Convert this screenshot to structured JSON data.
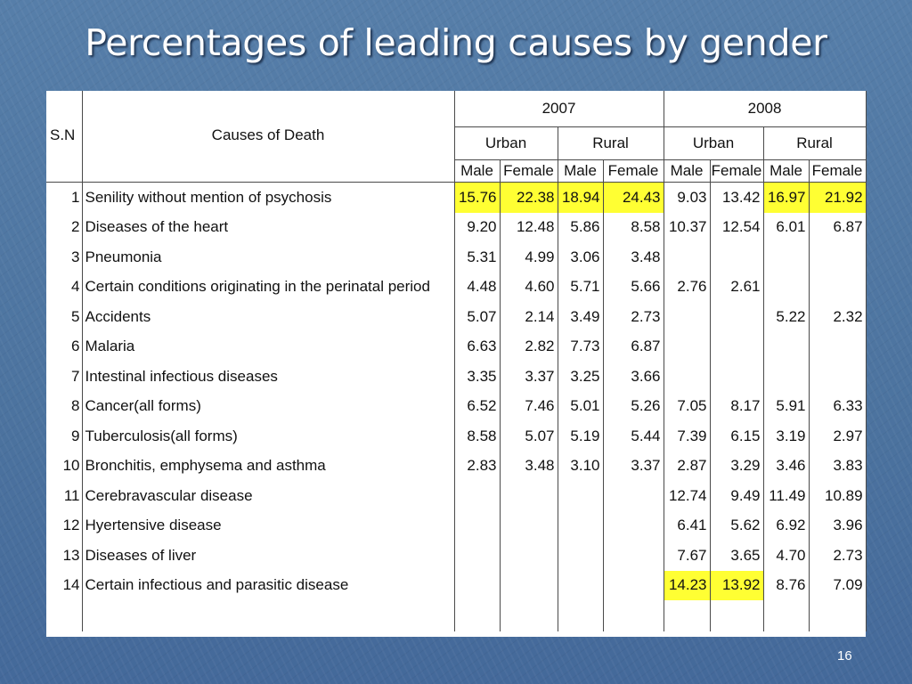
{
  "slide": {
    "title": "Percentages of leading causes by gender",
    "page_number": "16"
  },
  "colors": {
    "background": "#4f77a3",
    "highlight": "#ffff33",
    "title_text": "#ffffff"
  },
  "table": {
    "headers": {
      "sn": "S.N",
      "cause": "Causes of Death",
      "years": [
        "2007",
        "2008"
      ],
      "areas": [
        "Urban",
        "Rural",
        "Urban",
        "Rural"
      ],
      "genders": [
        "Male",
        "Female",
        "Male",
        "Female",
        "Male",
        "Female",
        "Male",
        "Female"
      ]
    },
    "rows": [
      {
        "sn": "1",
        "cause": "Senility without mention of psychosis",
        "values": [
          "15.76",
          "22.38",
          "18.94",
          "24.43",
          "9.03",
          "13.42",
          "16.97",
          "21.92"
        ],
        "highlight": [
          true,
          true,
          true,
          true,
          false,
          false,
          true,
          true
        ]
      },
      {
        "sn": "2",
        "cause": "Diseases of the heart",
        "values": [
          "9.20",
          "12.48",
          "5.86",
          "8.58",
          "10.37",
          "12.54",
          "6.01",
          "6.87"
        ],
        "highlight": [
          false,
          false,
          false,
          false,
          false,
          false,
          false,
          false
        ]
      },
      {
        "sn": "3",
        "cause": "Pneumonia",
        "values": [
          "5.31",
          "4.99",
          "3.06",
          "3.48",
          "",
          "",
          "",
          ""
        ],
        "highlight": [
          false,
          false,
          false,
          false,
          false,
          false,
          false,
          false
        ]
      },
      {
        "sn": "4",
        "cause": "Certain conditions originating in the perinatal period",
        "values": [
          "4.48",
          "4.60",
          "5.71",
          "5.66",
          "2.76",
          "2.61",
          "",
          ""
        ],
        "highlight": [
          false,
          false,
          false,
          false,
          false,
          false,
          false,
          false
        ]
      },
      {
        "sn": "5",
        "cause": "Accidents",
        "values": [
          "5.07",
          "2.14",
          "3.49",
          "2.73",
          "",
          "",
          "5.22",
          "2.32"
        ],
        "highlight": [
          false,
          false,
          false,
          false,
          false,
          false,
          false,
          false
        ]
      },
      {
        "sn": "6",
        "cause": "Malaria",
        "values": [
          "6.63",
          "2.82",
          "7.73",
          "6.87",
          "",
          "",
          "",
          ""
        ],
        "highlight": [
          false,
          false,
          false,
          false,
          false,
          false,
          false,
          false
        ]
      },
      {
        "sn": "7",
        "cause": "Intestinal infectious diseases",
        "values": [
          "3.35",
          "3.37",
          "3.25",
          "3.66",
          "",
          "",
          "",
          ""
        ],
        "highlight": [
          false,
          false,
          false,
          false,
          false,
          false,
          false,
          false
        ]
      },
      {
        "sn": "8",
        "cause": "Cancer(all forms)",
        "values": [
          "6.52",
          "7.46",
          "5.01",
          "5.26",
          "7.05",
          "8.17",
          "5.91",
          "6.33"
        ],
        "highlight": [
          false,
          false,
          false,
          false,
          false,
          false,
          false,
          false
        ]
      },
      {
        "sn": "9",
        "cause": "Tuberculosis(all forms)",
        "values": [
          "8.58",
          "5.07",
          "5.19",
          "5.44",
          "7.39",
          "6.15",
          "3.19",
          "2.97"
        ],
        "highlight": [
          false,
          false,
          false,
          false,
          false,
          false,
          false,
          false
        ]
      },
      {
        "sn": "10",
        "cause": "Bronchitis, emphysema and asthma",
        "values": [
          "2.83",
          "3.48",
          "3.10",
          "3.37",
          "2.87",
          "3.29",
          "3.46",
          "3.83"
        ],
        "highlight": [
          false,
          false,
          false,
          false,
          false,
          false,
          false,
          false
        ]
      },
      {
        "sn": "11",
        "cause": "Cerebravascular disease",
        "values": [
          "",
          "",
          "",
          "",
          "12.74",
          "9.49",
          "11.49",
          "10.89"
        ],
        "highlight": [
          false,
          false,
          false,
          false,
          false,
          false,
          false,
          false
        ]
      },
      {
        "sn": "12",
        "cause": "Hyertensive disease",
        "values": [
          "",
          "",
          "",
          "",
          "6.41",
          "5.62",
          "6.92",
          "3.96"
        ],
        "highlight": [
          false,
          false,
          false,
          false,
          false,
          false,
          false,
          false
        ]
      },
      {
        "sn": "13",
        "cause": "Diseases of liver",
        "values": [
          "",
          "",
          "",
          "",
          "7.67",
          "3.65",
          "4.70",
          "2.73"
        ],
        "highlight": [
          false,
          false,
          false,
          false,
          false,
          false,
          false,
          false
        ]
      },
      {
        "sn": "14",
        "cause": "Certain infectious and parasitic disease",
        "values": [
          "",
          "",
          "",
          "",
          "14.23",
          "13.92",
          "8.76",
          "7.09"
        ],
        "highlight": [
          false,
          false,
          false,
          false,
          true,
          true,
          false,
          false
        ]
      }
    ]
  }
}
